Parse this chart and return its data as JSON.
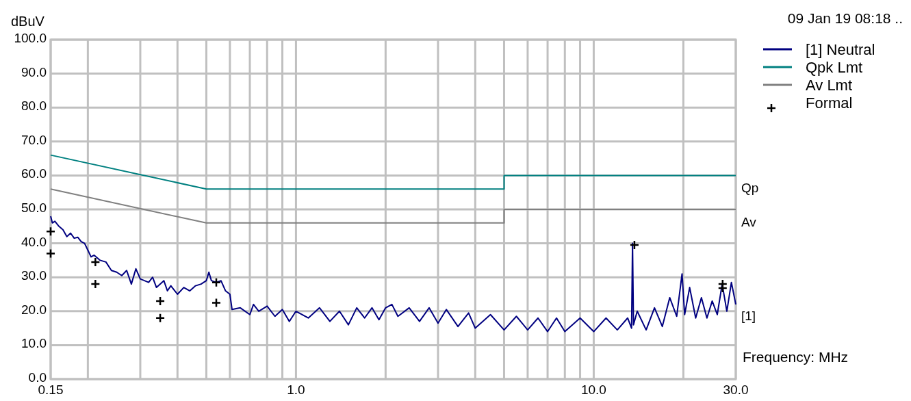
{
  "chart_data": {
    "type": "line",
    "xlabel": "Frequency: MHz",
    "ylabel": "dBuV",
    "annotations": [
      "09 Jan 19 08:18 ..",
      "Qp",
      "Av",
      "[1]"
    ],
    "log": "x",
    "grid": true,
    "legend": "top right",
    "xlim": [
      0.15,
      30
    ],
    "ylim": [
      0,
      100
    ],
    "xticks": [
      {
        "value": 0.15,
        "label": "0.15"
      },
      {
        "value": 0.2,
        "label": null
      },
      {
        "value": 0.3,
        "label": null
      },
      {
        "value": 0.4,
        "label": null
      },
      {
        "value": 0.5,
        "label": null
      },
      {
        "value": 0.6,
        "label": null
      },
      {
        "value": 0.7,
        "label": null
      },
      {
        "value": 0.8,
        "label": null
      },
      {
        "value": 0.9,
        "label": null
      },
      {
        "value": 1,
        "label": "1.0"
      },
      {
        "value": 2,
        "label": null
      },
      {
        "value": 3,
        "label": null
      },
      {
        "value": 4,
        "label": null
      },
      {
        "value": 5,
        "label": null
      },
      {
        "value": 6,
        "label": null
      },
      {
        "value": 7,
        "label": null
      },
      {
        "value": 8,
        "label": null
      },
      {
        "value": 9,
        "label": null
      },
      {
        "value": 10,
        "label": "10.0"
      },
      {
        "value": 20,
        "label": null
      },
      {
        "value": 30,
        "label": "30.0"
      }
    ],
    "yticks": [
      {
        "value": 0,
        "label": "0.0"
      },
      {
        "value": 10,
        "label": "10.0"
      },
      {
        "value": 20,
        "label": "20.0"
      },
      {
        "value": 30,
        "label": "30.0"
      },
      {
        "value": 40,
        "label": "40.0"
      },
      {
        "value": 50,
        "label": "50.0"
      },
      {
        "value": 60,
        "label": "60.0"
      },
      {
        "value": 70,
        "label": "70.0"
      },
      {
        "value": 80,
        "label": "80.0"
      },
      {
        "value": 90,
        "label": "90.0"
      },
      {
        "value": 100,
        "label": "100.0"
      }
    ],
    "series": [
      {
        "name": "[1] Neutral",
        "color": "#000080",
        "x": [
          0.15,
          0.152,
          0.155,
          0.16,
          0.165,
          0.17,
          0.175,
          0.18,
          0.185,
          0.19,
          0.195,
          0.2,
          0.205,
          0.21,
          0.22,
          0.23,
          0.24,
          0.25,
          0.26,
          0.27,
          0.28,
          0.29,
          0.3,
          0.32,
          0.33,
          0.34,
          0.36,
          0.37,
          0.38,
          0.4,
          0.42,
          0.44,
          0.46,
          0.48,
          0.5,
          0.51,
          0.52,
          0.54,
          0.56,
          0.58,
          0.6,
          0.61,
          0.65,
          0.7,
          0.72,
          0.75,
          0.8,
          0.85,
          0.9,
          0.95,
          1,
          1.1,
          1.2,
          1.3,
          1.4,
          1.5,
          1.6,
          1.7,
          1.8,
          1.9,
          2,
          2.1,
          2.2,
          2.4,
          2.6,
          2.8,
          3,
          3.2,
          3.5,
          3.8,
          4,
          4.5,
          5,
          5.5,
          6,
          6.5,
          7,
          7.5,
          8,
          9,
          10,
          11,
          12,
          13,
          13.4,
          13.5,
          13.6,
          14,
          15,
          16,
          17,
          18,
          19,
          19.8,
          20.2,
          21,
          22,
          23,
          24,
          25,
          26,
          27,
          28,
          29,
          30
        ],
        "values": [
          48,
          46,
          46.5,
          45,
          44,
          42,
          43,
          41.5,
          41.8,
          40.5,
          40,
          38,
          36,
          36.5,
          35,
          34.5,
          32,
          31.5,
          30.5,
          32,
          28,
          32.5,
          29.5,
          28.5,
          30,
          27,
          29,
          26,
          27.5,
          25,
          27,
          26,
          27.5,
          28,
          29,
          31.5,
          29,
          28.5,
          29,
          26,
          25,
          20.5,
          21,
          19,
          22,
          20,
          21.5,
          18.5,
          20.5,
          17,
          20,
          18,
          21,
          17,
          20,
          16,
          21,
          18,
          21,
          17.5,
          21,
          22,
          18.5,
          21,
          17,
          21,
          16.5,
          20.5,
          15.5,
          19.5,
          15,
          19,
          14.5,
          18.5,
          14.5,
          18,
          14,
          18,
          14,
          18,
          14,
          18,
          14.5,
          18,
          15,
          40,
          16,
          20,
          14.5,
          21,
          15.5,
          24,
          18.5,
          31,
          19,
          27,
          18,
          24,
          18,
          23,
          19,
          28,
          20,
          28.5,
          22
        ]
      },
      {
        "name": "Qpk Lmt",
        "color": "#008080",
        "x": [
          0.15,
          0.5,
          5,
          5,
          30
        ],
        "values": [
          66,
          56,
          56,
          60,
          60
        ]
      },
      {
        "name": "Av Lmt",
        "color": "#808080",
        "x": [
          0.15,
          0.5,
          5,
          5,
          30
        ],
        "values": [
          56,
          46,
          46,
          50,
          50
        ]
      },
      {
        "name": "Formal",
        "type": "scatter",
        "marker": "cross",
        "color": "#000000",
        "x": [
          0.15,
          0.15,
          0.212,
          0.212,
          0.35,
          0.35,
          0.54,
          0.54,
          13.7,
          27.1,
          27.1
        ],
        "values": [
          43.5,
          37,
          34.5,
          28,
          23,
          18,
          28.5,
          22.5,
          39.5,
          28,
          26.8
        ]
      }
    ]
  }
}
